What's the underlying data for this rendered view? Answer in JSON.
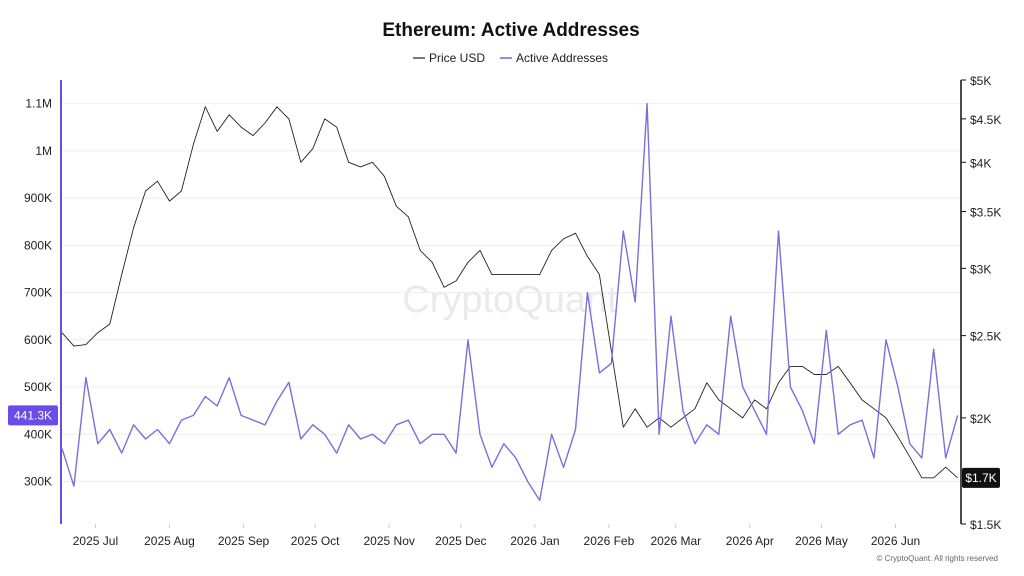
{
  "chart_data": {
    "type": "line",
    "title": "Ethereum: Active Addresses",
    "legend": {
      "placement": "top-center",
      "entries": [
        "Price USD",
        "Active Addresses"
      ]
    },
    "x_ticks": [
      "2025 Jul",
      "2025 Aug",
      "2025 Sep",
      "2025 Oct",
      "2025 Nov",
      "2025 Dec",
      "2026 Jan",
      "2026 Feb",
      "2026 Mar",
      "2026 Apr",
      "2026 May",
      "2026 Jun"
    ],
    "x_range": [
      "2025-06-17",
      "2026-06-28"
    ],
    "y_left": {
      "ticks": [
        "300K",
        "400K",
        "500K",
        "600K",
        "700K",
        "800K",
        "900K",
        "1M",
        "1.1M"
      ],
      "tick_values": [
        300000,
        400000,
        500000,
        600000,
        700000,
        800000,
        900000,
        1000000,
        1100000
      ],
      "range": [
        210000,
        1150000
      ]
    },
    "y_right": {
      "ticks": [
        "$1.5K",
        "$2K",
        "$2.5K",
        "$3K",
        "$3.5K",
        "$4K",
        "$4.5K",
        "$5K"
      ],
      "tick_values": [
        1500,
        2000,
        2500,
        3000,
        3500,
        4000,
        4500,
        5000
      ],
      "scale": "log",
      "range": [
        1500,
        5000
      ]
    },
    "grid": true,
    "series": [
      {
        "name": "Price USD",
        "axis": "right",
        "color": "#222222",
        "x": [
          "2025-06-17",
          "2025-06-22",
          "2025-06-27",
          "2025-07-02",
          "2025-07-07",
          "2025-07-12",
          "2025-07-17",
          "2025-07-22",
          "2025-07-27",
          "2025-08-01",
          "2025-08-06",
          "2025-08-11",
          "2025-08-16",
          "2025-08-21",
          "2025-08-26",
          "2025-08-31",
          "2025-09-05",
          "2025-09-10",
          "2025-09-15",
          "2025-09-20",
          "2025-09-25",
          "2025-09-30",
          "2025-10-05",
          "2025-10-10",
          "2025-10-15",
          "2025-10-20",
          "2025-10-25",
          "2025-10-30",
          "2025-11-04",
          "2025-11-09",
          "2025-11-14",
          "2025-11-19",
          "2025-11-24",
          "2025-11-29",
          "2025-12-04",
          "2025-12-09",
          "2025-12-14",
          "2025-12-19",
          "2025-12-24",
          "2025-12-29",
          "2026-01-03",
          "2026-01-08",
          "2026-01-13",
          "2026-01-18",
          "2026-01-23",
          "2026-01-28",
          "2026-02-02",
          "2026-02-07",
          "2026-02-12",
          "2026-02-17",
          "2026-02-22",
          "2026-02-27",
          "2026-03-04",
          "2026-03-09",
          "2026-03-14",
          "2026-03-19",
          "2026-03-24",
          "2026-03-29",
          "2026-04-03",
          "2026-04-08",
          "2026-04-13",
          "2026-04-18",
          "2026-04-23",
          "2026-04-28",
          "2026-05-03",
          "2026-05-08",
          "2026-05-13",
          "2026-05-18",
          "2026-05-23",
          "2026-05-28",
          "2026-06-02",
          "2026-06-07",
          "2026-06-12",
          "2026-06-17",
          "2026-06-22",
          "2026-06-27"
        ],
        "values": [
          2520,
          2430,
          2440,
          2520,
          2580,
          2950,
          3350,
          3700,
          3800,
          3600,
          3700,
          4200,
          4650,
          4350,
          4550,
          4400,
          4300,
          4450,
          4650,
          4500,
          4000,
          4150,
          4500,
          4400,
          4000,
          3950,
          4000,
          3850,
          3550,
          3450,
          3150,
          3050,
          2850,
          2900,
          3050,
          3150,
          2950,
          2950,
          2950,
          2950,
          2950,
          3150,
          3250,
          3300,
          3100,
          2950,
          2400,
          1950,
          2050,
          1950,
          2000,
          1950,
          2000,
          2050,
          2200,
          2100,
          2050,
          2000,
          2100,
          2050,
          2200,
          2300,
          2300,
          2250,
          2250,
          2300,
          2200,
          2100,
          2050,
          2000,
          1900,
          1800,
          1700,
          1700,
          1750,
          1700
        ]
      },
      {
        "name": "Active Addresses",
        "axis": "left",
        "color": "#7b6fdb",
        "x": [
          "2025-06-17",
          "2025-06-22",
          "2025-06-27",
          "2025-07-02",
          "2025-07-07",
          "2025-07-12",
          "2025-07-17",
          "2025-07-22",
          "2025-07-27",
          "2025-08-01",
          "2025-08-06",
          "2025-08-11",
          "2025-08-16",
          "2025-08-21",
          "2025-08-26",
          "2025-08-31",
          "2025-09-05",
          "2025-09-10",
          "2025-09-15",
          "2025-09-20",
          "2025-09-25",
          "2025-09-30",
          "2025-10-05",
          "2025-10-10",
          "2025-10-15",
          "2025-10-20",
          "2025-10-25",
          "2025-10-30",
          "2025-11-04",
          "2025-11-09",
          "2025-11-14",
          "2025-11-19",
          "2025-11-24",
          "2025-11-29",
          "2025-12-04",
          "2025-12-09",
          "2025-12-14",
          "2025-12-19",
          "2025-12-24",
          "2025-12-29",
          "2026-01-03",
          "2026-01-08",
          "2026-01-13",
          "2026-01-18",
          "2026-01-23",
          "2026-01-28",
          "2026-02-02",
          "2026-02-07",
          "2026-02-12",
          "2026-02-17",
          "2026-02-22",
          "2026-02-27",
          "2026-03-04",
          "2026-03-09",
          "2026-03-14",
          "2026-03-19",
          "2026-03-24",
          "2026-03-29",
          "2026-04-03",
          "2026-04-08",
          "2026-04-13",
          "2026-04-18",
          "2026-04-23",
          "2026-04-28",
          "2026-05-03",
          "2026-05-08",
          "2026-05-13",
          "2026-05-18",
          "2026-05-23",
          "2026-05-28",
          "2026-06-02",
          "2026-06-07",
          "2026-06-12",
          "2026-06-17",
          "2026-06-22",
          "2026-06-27"
        ],
        "values": [
          370,
          290,
          520,
          380,
          410,
          360,
          420,
          390,
          410,
          380,
          430,
          440,
          480,
          460,
          520,
          440,
          430,
          420,
          470,
          510,
          390,
          420,
          400,
          360,
          420,
          390,
          400,
          380,
          420,
          430,
          380,
          400,
          400,
          360,
          600,
          400,
          330,
          380,
          350,
          300,
          260,
          400,
          330,
          410,
          700,
          530,
          550,
          830,
          680,
          1100,
          400,
          650,
          450,
          380,
          420,
          400,
          650,
          500,
          450,
          400,
          830,
          500,
          450,
          380,
          620,
          400,
          420,
          430,
          350,
          600,
          500,
          380,
          350,
          580,
          350,
          440
        ]
      }
    ],
    "last_value_labels": {
      "price": "$1.7K",
      "active_addresses": "441.3K"
    }
  },
  "watermark": "CryptoQuant",
  "credit": "© CryptoQuant. All rights reserved",
  "colors": {
    "price": "#222222",
    "active": "#7b6fdb",
    "badge_left": "#6a4ce8",
    "badge_right": "#111111"
  }
}
